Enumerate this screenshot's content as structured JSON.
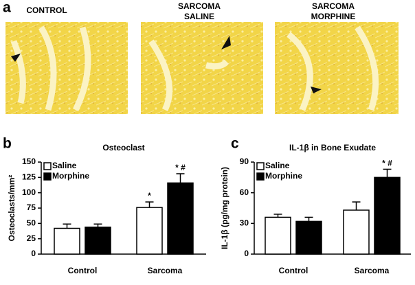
{
  "panel_labels": [
    "a",
    "b",
    "c"
  ],
  "images": [
    {
      "label": [
        "CONTROL"
      ]
    },
    {
      "label": [
        "SARCOMA",
        "SALINE"
      ]
    },
    {
      "label": [
        "SARCOMA",
        "MORPHINE"
      ]
    }
  ],
  "chart_data": [
    {
      "type": "bar",
      "title": "Osteoclast",
      "ylabel": "Osteoclasts/mm²",
      "categories": [
        "Control",
        "Sarcoma"
      ],
      "series": [
        {
          "name": "Saline",
          "color": "#ffffff",
          "values": [
            42,
            76
          ],
          "errors": [
            7,
            9
          ],
          "significance": [
            null,
            "*"
          ]
        },
        {
          "name": "Morphine",
          "color": "#000000",
          "values": [
            44,
            116
          ],
          "errors": [
            5,
            15
          ],
          "significance": [
            null,
            "* #"
          ]
        }
      ],
      "ylim": [
        0,
        150
      ],
      "yticks": [
        0,
        25,
        50,
        75,
        100,
        125,
        150
      ],
      "legend": "top-left"
    },
    {
      "type": "bar",
      "title": "IL-1β in Bone Exudate",
      "ylabel": "IL-1β (pg/mg protein)",
      "categories": [
        "Control",
        "Sarcoma"
      ],
      "series": [
        {
          "name": "Saline",
          "color": "#ffffff",
          "values": [
            36,
            43
          ],
          "errors": [
            3,
            8
          ],
          "significance": [
            null,
            null
          ]
        },
        {
          "name": "Morphine",
          "color": "#000000",
          "values": [
            32,
            75
          ],
          "errors": [
            4,
            8
          ],
          "significance": [
            null,
            "* #"
          ]
        }
      ],
      "ylim": [
        0,
        90
      ],
      "yticks": [
        0,
        30,
        60,
        90
      ],
      "legend": "top-left"
    }
  ]
}
